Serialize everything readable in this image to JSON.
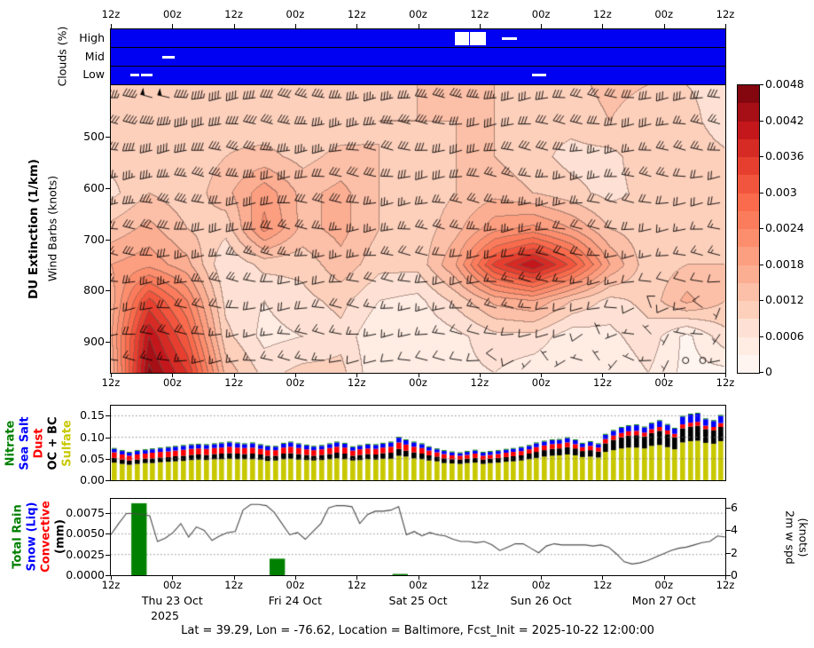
{
  "figure": {
    "footer": "Lat = 39.29, Lon = -76.62, Location = Baltimore, Fcst_Init = 2025-10-22 12:00:00",
    "year_label": "2025",
    "time_tick_labels": [
      "12z",
      "00z",
      "12z",
      "00z",
      "12z",
      "00z",
      "12z",
      "00z",
      "12z",
      "00z",
      "12z"
    ],
    "date_labels": [
      "Thu 23 Oct",
      "Fri 24 Oct",
      "Sat 25 Oct",
      "Sun 26 Oct",
      "Mon 27 Oct"
    ],
    "clouds": {
      "ylabel": "Clouds (%)",
      "rows": [
        "High",
        "Mid",
        "Low"
      ],
      "bg_color": "#0000f2"
    },
    "main": {
      "ylabel_line1": "DU Extinction (1/km)",
      "ylabel_line2": "Wind Barbs (knots)",
      "ytick_labels": [
        "500",
        "600",
        "700",
        "800",
        "900"
      ],
      "colorbar_tick_labels": [
        "0",
        "0.0006",
        "0.0012",
        "0.0018",
        "0.0024",
        "0.003",
        "0.0036",
        "0.0042",
        "0.0048"
      ]
    },
    "aerosol": {
      "ytick_labels": [
        "0.00",
        "0.05",
        "0.10",
        "0.15"
      ],
      "legend": [
        {
          "label": "Nitrate",
          "color": "#008000"
        },
        {
          "label": "Sea Salt",
          "color": "#0000ff"
        },
        {
          "label": "Dust",
          "color": "#ff0000"
        },
        {
          "label": "OC + BC",
          "color": "#000000"
        },
        {
          "label": "Sulfate",
          "color": "#c8c800"
        }
      ]
    },
    "precip": {
      "ytick_labels_left": [
        "0.0000",
        "0.0025",
        "0.0050",
        "0.0075"
      ],
      "ytick_labels_right": [
        "0",
        "2",
        "4",
        "6"
      ],
      "legend": [
        {
          "label": "Total Rain",
          "color": "#008000"
        },
        {
          "label": "Snow (Liq)",
          "color": "#0000ff"
        },
        {
          "label": "Convective",
          "color": "#ff0000"
        },
        {
          "label": "(mm)",
          "color": "#000000"
        }
      ],
      "right_label_line1": "2m w spd",
      "right_label_line2": "(knots)"
    }
  },
  "chart_data": [
    {
      "id": "du_extinction",
      "type": "heatmap",
      "title": "DU Extinction (1/km)",
      "x_hours": [
        0,
        7.5,
        15,
        22.5,
        30,
        37.5,
        45,
        52.5,
        60,
        67.5,
        75,
        82.5,
        90,
        97.5,
        105,
        112.5,
        120
      ],
      "x_start": "2025-10-22 12z",
      "pressure_hpa": [
        400,
        470,
        540,
        610,
        680,
        750,
        820,
        890,
        960
      ],
      "unit_scale": 0.0001,
      "values": [
        [
          10,
          12,
          11,
          10,
          10,
          10,
          10,
          11,
          12,
          12,
          12,
          10,
          11,
          13,
          12,
          9,
          7
        ],
        [
          11,
          12,
          10,
          11,
          10,
          10,
          10,
          12,
          12,
          12,
          12,
          10,
          10,
          12,
          10,
          11,
          6
        ],
        [
          10,
          10,
          10,
          12,
          13,
          11,
          13,
          12,
          10,
          12,
          12,
          10,
          8,
          8,
          11,
          12,
          10
        ],
        [
          8,
          12,
          10,
          14,
          20,
          14,
          16,
          12,
          10,
          12,
          14,
          12,
          10,
          8,
          10,
          10,
          12
        ],
        [
          13,
          16,
          12,
          10,
          22,
          14,
          16,
          12,
          10,
          14,
          20,
          22,
          18,
          12,
          10,
          10,
          12
        ],
        [
          18,
          20,
          16,
          6,
          10,
          10,
          14,
          10,
          10,
          18,
          34,
          42,
          32,
          18,
          10,
          12,
          12
        ],
        [
          16,
          34,
          24,
          8,
          6,
          8,
          10,
          6,
          5,
          10,
          16,
          18,
          12,
          8,
          10,
          16,
          12
        ],
        [
          17,
          42,
          30,
          10,
          5,
          6,
          8,
          3,
          3,
          5,
          8,
          8,
          4,
          5,
          8,
          2,
          8
        ],
        [
          15,
          46,
          36,
          14,
          8,
          10,
          10,
          3,
          4,
          5,
          6,
          4,
          3,
          3,
          6,
          2,
          2
        ]
      ],
      "level_step": 0.0003,
      "level_max": 0.0048,
      "colormap": "Reds",
      "level_colors": [
        "#fff5f0",
        "#ffece3",
        "#fee1d4",
        "#fdd0bc",
        "#fcbfa7",
        "#fcae92",
        "#fc9e80",
        "#fc8d6d",
        "#fb7c5c",
        "#f96b4c",
        "#f2553d",
        "#e63f2f",
        "#d62a24",
        "#c4171c",
        "#a50f15",
        "#840710"
      ]
    },
    {
      "id": "wind_barbs",
      "type": "barbs",
      "units": "knots",
      "dir_from_deg": 270,
      "x_hours": [
        0,
        7.5,
        15,
        22.5,
        30,
        37.5,
        45,
        52.5,
        60,
        67.5,
        75,
        82.5,
        90,
        97.5,
        105,
        112.5,
        120
      ],
      "pressure_hpa": [
        400,
        470,
        540,
        610,
        680,
        750,
        820,
        890,
        960
      ],
      "speed_grid_kt": [
        [
          45,
          50,
          48,
          42,
          40,
          38,
          36,
          35,
          35,
          34,
          34,
          33,
          32,
          32,
          30,
          30,
          28
        ],
        [
          42,
          46,
          44,
          40,
          38,
          36,
          34,
          33,
          33,
          32,
          31,
          30,
          30,
          29,
          28,
          27,
          26
        ],
        [
          38,
          40,
          38,
          35,
          34,
          33,
          32,
          31,
          30,
          30,
          29,
          28,
          27,
          26,
          25,
          24,
          23
        ],
        [
          34,
          35,
          34,
          32,
          31,
          30,
          29,
          28,
          28,
          27,
          26,
          25,
          24,
          23,
          22,
          21,
          20
        ],
        [
          30,
          31,
          30,
          29,
          28,
          27,
          26,
          25,
          25,
          24,
          23,
          22,
          21,
          20,
          18,
          17,
          16
        ],
        [
          26,
          27,
          26,
          25,
          24,
          23,
          23,
          22,
          21,
          20,
          19,
          18,
          17,
          15,
          14,
          13,
          12
        ],
        [
          22,
          23,
          22,
          21,
          20,
          19,
          19,
          18,
          17,
          16,
          15,
          14,
          12,
          10,
          9,
          9,
          8
        ],
        [
          18,
          19,
          18,
          17,
          16,
          15,
          15,
          14,
          13,
          12,
          11,
          10,
          8,
          6,
          5,
          2,
          5
        ],
        [
          14,
          15,
          14,
          13,
          12,
          12,
          11,
          10,
          10,
          9,
          8,
          6,
          5,
          4,
          3,
          2,
          2
        ]
      ]
    },
    {
      "id": "aerosol_optical_depth",
      "type": "bar",
      "stacked": true,
      "dt_hours": 1.5,
      "unit_scale": 0.001,
      "ylim": [
        0,
        0.1736
      ],
      "stack_order_bottom_to_top": [
        "Sulfate",
        "OC + BC",
        "Dust",
        "Sea Salt",
        "Nitrate"
      ],
      "series": [
        {
          "name": "Sulfate",
          "color": "#c8c800",
          "values": [
            41,
            38,
            36,
            38,
            40,
            40,
            42,
            43,
            44,
            45,
            47,
            48,
            47,
            49,
            49,
            50,
            49,
            49,
            49,
            48,
            45,
            46,
            49,
            50,
            48,
            47,
            46,
            47,
            49,
            51,
            49,
            46,
            47,
            49,
            48,
            50,
            50,
            57,
            55,
            51,
            49,
            46,
            44,
            40,
            39,
            38,
            40,
            41,
            38,
            40,
            41,
            43,
            44,
            46,
            49,
            52,
            55,
            57,
            58,
            60,
            58,
            54,
            55,
            53,
            66,
            70,
            74,
            76,
            76,
            74,
            80,
            82,
            77,
            72,
            88,
            91,
            92,
            87,
            85,
            91
          ]
        },
        {
          "name": "OC + BC",
          "color": "#000000",
          "values": [
            11,
            10,
            10,
            10,
            10,
            11,
            11,
            11,
            12,
            12,
            12,
            12,
            12,
            12,
            13,
            13,
            13,
            12,
            13,
            12,
            12,
            11,
            13,
            13,
            13,
            12,
            11,
            12,
            12,
            13,
            13,
            11,
            12,
            12,
            12,
            13,
            14,
            16,
            14,
            14,
            13,
            12,
            11,
            11,
            10,
            10,
            10,
            11,
            10,
            10,
            11,
            11,
            12,
            12,
            13,
            14,
            15,
            16,
            16,
            17,
            16,
            14,
            15,
            14,
            20,
            24,
            26,
            28,
            29,
            28,
            30,
            33,
            30,
            28,
            33,
            34,
            35,
            32,
            31,
            33
          ]
        },
        {
          "name": "Dust",
          "color": "#ff0000",
          "values": [
            13,
            12,
            11,
            12,
            12,
            13,
            13,
            13,
            13,
            14,
            14,
            14,
            14,
            14,
            14,
            15,
            14,
            14,
            14,
            13,
            13,
            13,
            14,
            15,
            14,
            13,
            13,
            13,
            14,
            14,
            14,
            12,
            13,
            13,
            13,
            13,
            14,
            15,
            14,
            13,
            13,
            11,
            10,
            10,
            9,
            9,
            9,
            10,
            9,
            9,
            9,
            10,
            10,
            10,
            10,
            11,
            11,
            11,
            11,
            11,
            10,
            9,
            10,
            9,
            10,
            10,
            10,
            10,
            10,
            9,
            9,
            9,
            9,
            8,
            9,
            9,
            9,
            8,
            8,
            9
          ]
        },
        {
          "name": "Sea Salt",
          "color": "#0000ff",
          "values": [
            8,
            8,
            7,
            8,
            8,
            8,
            8,
            9,
            9,
            9,
            9,
            9,
            9,
            9,
            10,
            10,
            10,
            9,
            10,
            9,
            9,
            8,
            9,
            10,
            9,
            9,
            8,
            8,
            9,
            10,
            9,
            8,
            8,
            9,
            9,
            9,
            10,
            11,
            10,
            10,
            9,
            8,
            7,
            7,
            7,
            6,
            7,
            7,
            7,
            7,
            7,
            7,
            7,
            8,
            8,
            9,
            9,
            9,
            9,
            10,
            9,
            8,
            9,
            8,
            10,
            11,
            12,
            12,
            13,
            12,
            13,
            14,
            13,
            12,
            18,
            19,
            19,
            15,
            14,
            17
          ]
        },
        {
          "name": "Nitrate",
          "color": "#008000",
          "values": [
            2,
            2,
            2,
            2,
            2,
            2,
            2,
            2,
            2,
            2,
            2,
            2,
            2,
            2,
            2,
            2,
            2,
            2,
            2,
            2,
            2,
            2,
            2,
            2,
            2,
            2,
            2,
            2,
            2,
            2,
            2,
            2,
            2,
            2,
            2,
            2,
            2,
            2,
            2,
            2,
            2,
            2,
            2,
            2,
            2,
            2,
            2,
            2,
            2,
            2,
            2,
            2,
            2,
            2,
            2,
            2,
            2,
            2,
            2,
            2,
            2,
            2,
            2,
            2,
            2,
            2,
            2,
            2,
            2,
            2,
            2,
            2,
            2,
            2,
            2,
            2,
            2,
            2,
            2,
            2
          ]
        }
      ]
    },
    {
      "id": "precip_bars",
      "type": "bar",
      "units": "mm",
      "color": "#008000",
      "events": [
        {
          "t0_h": 4,
          "t1_h": 7,
          "value_mm": 0.0087
        },
        {
          "t0_h": 31,
          "t1_h": 34,
          "value_mm": 0.002
        },
        {
          "t0_h": 55,
          "t1_h": 58,
          "value_mm": 0.00015
        }
      ],
      "ylim": [
        0,
        0.00923
      ]
    },
    {
      "id": "wind_2m_speed",
      "type": "line",
      "units": "knots",
      "dt_hours": 1.5,
      "ylim": [
        0,
        6.8
      ],
      "color": "#4a4a4a",
      "values_knots": [
        3.6,
        4.6,
        5.5,
        5.5,
        5.4,
        5.3,
        3.0,
        3.3,
        3.8,
        4.6,
        3.4,
        4.3,
        4.0,
        3.1,
        3.5,
        3.8,
        3.9,
        5.8,
        6.3,
        6.3,
        6.2,
        5.6,
        4.6,
        3.6,
        3.8,
        3.2,
        3.9,
        4.6,
        6.0,
        6.2,
        6.2,
        6.1,
        4.6,
        5.4,
        5.7,
        5.7,
        5.8,
        6.1,
        3.6,
        3.9,
        3.5,
        3.8,
        3.6,
        3.5,
        3.2,
        3.0,
        3.0,
        2.9,
        3.0,
        2.7,
        2.2,
        2.5,
        2.8,
        2.8,
        2.4,
        2.0,
        2.6,
        2.8,
        2.7,
        2.7,
        2.7,
        2.7,
        2.6,
        2.7,
        2.5,
        1.9,
        1.2,
        1.0,
        1.1,
        1.3,
        1.6,
        1.9,
        2.2,
        2.4,
        2.5,
        2.7,
        2.9,
        3.0,
        3.5,
        3.4
      ]
    },
    {
      "id": "cloud_cover",
      "type": "events",
      "units": "%",
      "marks": [
        {
          "row": "High",
          "t0_h": 67.2,
          "t1_h": 69.9,
          "kind": "block"
        },
        {
          "row": "High",
          "t0_h": 70.2,
          "t1_h": 73.2,
          "kind": "block"
        },
        {
          "row": "High",
          "t0_h": 76.3,
          "t1_h": 79.3,
          "kind": "dash"
        },
        {
          "row": "Mid",
          "t0_h": 10.0,
          "t1_h": 12.5,
          "kind": "dash"
        },
        {
          "row": "Low",
          "t0_h": 3.8,
          "t1_h": 5.5,
          "kind": "dash"
        },
        {
          "row": "Low",
          "t0_h": 5.9,
          "t1_h": 8.1,
          "kind": "dash"
        },
        {
          "row": "Low",
          "t0_h": 82.3,
          "t1_h": 85.0,
          "kind": "dash"
        }
      ]
    }
  ]
}
